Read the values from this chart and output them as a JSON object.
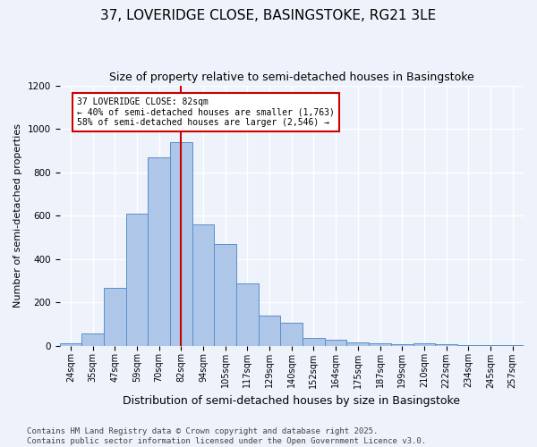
{
  "title1": "37, LOVERIDGE CLOSE, BASINGSTOKE, RG21 3LE",
  "title2": "Size of property relative to semi-detached houses in Basingstoke",
  "xlabel": "Distribution of semi-detached houses by size in Basingstoke",
  "ylabel": "Number of semi-detached properties",
  "categories": [
    "24sqm",
    "35sqm",
    "47sqm",
    "59sqm",
    "70sqm",
    "82sqm",
    "94sqm",
    "105sqm",
    "117sqm",
    "129sqm",
    "140sqm",
    "152sqm",
    "164sqm",
    "175sqm",
    "187sqm",
    "199sqm",
    "210sqm",
    "222sqm",
    "234sqm",
    "245sqm",
    "257sqm"
  ],
  "values": [
    10,
    55,
    265,
    610,
    870,
    940,
    560,
    470,
    285,
    140,
    105,
    35,
    25,
    15,
    10,
    5,
    10,
    5,
    2,
    2,
    2
  ],
  "bar_color": "#aec6e8",
  "bar_edge_color": "#5b8fc9",
  "vline_x": 5,
  "vline_color": "#cc0000",
  "annotation_text": "37 LOVERIDGE CLOSE: 82sqm\n← 40% of semi-detached houses are smaller (1,763)\n58% of semi-detached houses are larger (2,546) →",
  "annotation_box_color": "#ffffff",
  "annotation_box_edge": "#cc0000",
  "ylim": [
    0,
    1200
  ],
  "yticks": [
    0,
    200,
    400,
    600,
    800,
    1000,
    1200
  ],
  "footer": "Contains HM Land Registry data © Crown copyright and database right 2025.\nContains public sector information licensed under the Open Government Licence v3.0.",
  "bg_color": "#eef2fb",
  "plot_bg_color": "#eef2fb",
  "grid_color": "#ffffff",
  "title1_fontsize": 11,
  "title2_fontsize": 9,
  "xlabel_fontsize": 9,
  "ylabel_fontsize": 8,
  "footer_fontsize": 6.5
}
